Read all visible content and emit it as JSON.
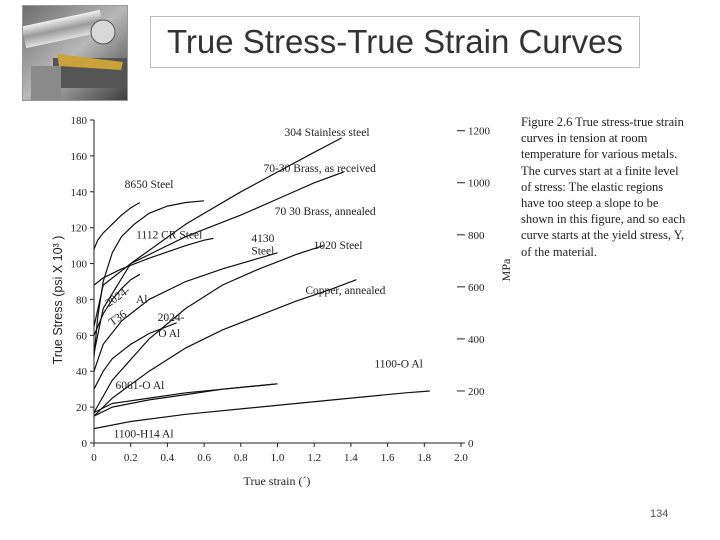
{
  "slide": {
    "title": "True Stress-True Strain Curves",
    "page_number": "134",
    "caption": "Figure 2.6 True stress-true strain curves in tension at room temperature for various metals. The curves start at a finite level of stress: The elastic regions have too steep a slope to be shown in this figure, and so each curve starts at the yield stress, Y, of the material."
  },
  "chart_data": {
    "type": "line",
    "title": "",
    "xlabel": "True strain (´)",
    "ylabel": "True Stress (psi X 10³ )",
    "y2label": "MPa",
    "xlim": [
      0,
      2.0
    ],
    "ylim": [
      0,
      180
    ],
    "x_ticks": [
      "0",
      "0.2",
      "0.4",
      "0.6",
      "0.8",
      "1.0",
      "1.2",
      "1.4",
      "1.6",
      "1.8",
      "2.0"
    ],
    "y_ticks": [
      "0",
      "20",
      "40",
      "60",
      "80",
      "100",
      "120",
      "140",
      "160",
      "180"
    ],
    "y2_ticks": [
      "0",
      "200",
      "400",
      "600",
      "800",
      "1000",
      "1200"
    ],
    "grid": false,
    "series": [
      {
        "name": "304 Stainless steel",
        "x": [
          0,
          0.05,
          0.2,
          0.5,
          0.8,
          1.0,
          1.2,
          1.35
        ],
        "y": [
          50,
          75,
          100,
          122,
          140,
          151,
          162,
          170
        ]
      },
      {
        "name": "70-30 Brass, as received",
        "x": [
          0,
          0.05,
          0.2,
          0.5,
          0.8,
          1.0,
          1.2,
          1.36
        ],
        "y": [
          65,
          88,
          100,
          115,
          127,
          136,
          145,
          151
        ]
      },
      {
        "name": "8650 Steel",
        "x": [
          0,
          0.02,
          0.05,
          0.1,
          0.15,
          0.2,
          0.25
        ],
        "y": [
          108,
          113,
          117,
          122,
          127,
          131,
          134
        ]
      },
      {
        "name": "1112 CR Steel",
        "x": [
          0,
          0.05,
          0.15,
          0.3,
          0.5,
          0.6,
          0.65
        ],
        "y": [
          88,
          92,
          97,
          103,
          110,
          113,
          114
        ]
      },
      {
        "name": "4130 Steel",
        "x": [
          0,
          0.02,
          0.05,
          0.1,
          0.15,
          0.22,
          0.3,
          0.4,
          0.5,
          0.6
        ],
        "y": [
          48,
          70,
          90,
          106,
          115,
          122,
          128,
          132,
          134,
          135
        ]
      },
      {
        "name": "70 30 Brass, annealed",
        "x": [
          0,
          0.1,
          0.3,
          0.5,
          0.7,
          0.9,
          1.0,
          1.1,
          1.25
        ],
        "y": [
          17,
          35,
          58,
          75,
          88,
          97,
          101,
          105,
          110
        ]
      },
      {
        "name": "1020 Steel",
        "x": [
          0,
          0.05,
          0.15,
          0.3,
          0.5,
          0.7,
          0.9,
          1.0
        ],
        "y": [
          40,
          55,
          68,
          80,
          90,
          97,
          103,
          106
        ]
      },
      {
        "name": "Copper, annealed",
        "x": [
          0,
          0.1,
          0.3,
          0.5,
          0.7,
          0.9,
          1.1,
          1.3,
          1.43
        ],
        "y": [
          15,
          25,
          40,
          53,
          63,
          71,
          79,
          86,
          91
        ]
      },
      {
        "name": "2024-T36 Al",
        "x": [
          0,
          0.05,
          0.1,
          0.15,
          0.2,
          0.25
        ],
        "y": [
          60,
          72,
          80,
          86,
          91,
          94
        ]
      },
      {
        "name": "2024-O Al",
        "x": [
          0,
          0.05,
          0.1,
          0.2,
          0.3,
          0.4,
          0.45
        ],
        "y": [
          30,
          40,
          47,
          55,
          61,
          65,
          67
        ]
      },
      {
        "name": "1100-O Al",
        "x": [
          0,
          0.2,
          0.5,
          0.8,
          1.1,
          1.4,
          1.7,
          1.83
        ],
        "y": [
          8,
          12,
          16,
          19,
          22,
          25,
          28,
          29
        ]
      },
      {
        "name": "6061-O Al",
        "x": [
          0,
          0.1,
          0.3,
          0.5,
          0.7,
          0.9,
          1.0
        ],
        "y": [
          15,
          20,
          24,
          27,
          30,
          32,
          33
        ]
      },
      {
        "name": "1100-H14 Al",
        "x": [
          0,
          0.1,
          0.3,
          0.5,
          0.7,
          0.9,
          1.0
        ],
        "y": [
          17,
          22,
          25,
          28,
          30,
          32,
          33
        ]
      }
    ],
    "annotations": [
      {
        "text": "304  Stainless  steel",
        "x": 1.27,
        "y": 171
      },
      {
        "text": "70-30  Brass,   as  received",
        "x": 1.23,
        "y": 151
      },
      {
        "text": "8650  Steel",
        "x": 0.3,
        "y": 142
      },
      {
        "text": "1112  CR  Steel",
        "x": 0.41,
        "y": 114
      },
      {
        "text": "4130",
        "x": 0.92,
        "y": 112
      },
      {
        "text": "Steel",
        "x": 0.92,
        "y": 105
      },
      {
        "text": "70 30  Brass,   annealed",
        "x": 1.26,
        "y": 127
      },
      {
        "text": "1020  Steel",
        "x": 1.33,
        "y": 108
      },
      {
        "text": "Copper,   annealed",
        "x": 1.37,
        "y": 83
      },
      {
        "text": "2024-",
        "x": 0.14,
        "y": 80
      },
      {
        "text": "T36",
        "x": 0.14,
        "y": 68
      },
      {
        "text": "Al",
        "x": 0.26,
        "y": 78
      },
      {
        "text": "2024-",
        "x": 0.42,
        "y": 68
      },
      {
        "text": "O  Al",
        "x": 0.41,
        "y": 59
      },
      {
        "text": "1100-O  Al",
        "x": 1.66,
        "y": 42
      },
      {
        "text": "6061-O  Al",
        "x": 0.25,
        "y": 30
      },
      {
        "text": "1100-H14  Al",
        "x": 0.27,
        "y": 3
      }
    ]
  }
}
